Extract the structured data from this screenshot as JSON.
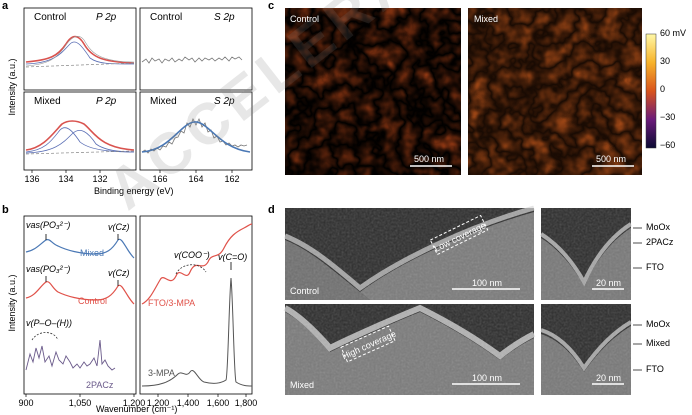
{
  "panels": {
    "a": {
      "label": "a",
      "p_control": {
        "sample": "Control",
        "peak": "P 2p"
      },
      "s_control": {
        "sample": "Control",
        "peak": "S 2p"
      },
      "p_mixed": {
        "sample": "Mixed",
        "peak": "P 2p"
      },
      "s_mixed": {
        "sample": "Mixed",
        "peak": "S 2p"
      },
      "ylabel": "Intensity (a.u.)",
      "xlabel": "Binding energy (eV)",
      "p_ticks": [
        "136",
        "134",
        "132"
      ],
      "s_ticks": [
        "166",
        "164",
        "162"
      ]
    },
    "b": {
      "label": "b",
      "ylabel": "Intensity (a.u.)",
      "xlabel": "Wavenumber (cm⁻¹)",
      "left_ticks": [
        "900",
        "1,050",
        "1,200"
      ],
      "right_ticks": [
        "1,200",
        "1,400",
        "1,600",
        "1,800"
      ],
      "series_left": [
        "Mixed",
        "Control",
        "2PACz"
      ],
      "series_right": [
        "FTO/3-MPA",
        "3-MPA"
      ],
      "annotations": {
        "vas_po3_top": "vas(PO₃²⁻)",
        "vcz_top": "v(Cz)",
        "vas_po3_mid": "vas(PO₃²⁻)",
        "vcz_mid": "v(Cz)",
        "vpoh": "v(P–O–(H))",
        "vcoo": "v(COO⁻)",
        "vco": "v(C=O)"
      }
    },
    "c": {
      "label": "c",
      "left_title": "Control",
      "right_title": "Mixed",
      "scalebar_left": "500 nm",
      "scalebar_right": "500 nm",
      "colorbar_ticks": [
        "60 mV",
        "30",
        "0",
        "−30",
        "−60"
      ]
    },
    "d": {
      "label": "d",
      "top_label": "Control",
      "bottom_label": "Mixed",
      "low_cov": "Low coverage",
      "high_cov": "High coverage",
      "scale_top_big": "100 nm",
      "scale_top_small": "20 nm",
      "scale_bot_big": "100 nm",
      "scale_bot_small": "20 nm",
      "right_top": [
        "MoOx",
        "2PACz",
        "FTO"
      ],
      "right_bot": [
        "MoOx",
        "Mixed",
        "FTO"
      ]
    }
  },
  "watermark": "ACCELERATED ARTICLE PREVIEW",
  "colors": {
    "fit_red": "#d9534f",
    "component_blue": "#5b6fb5",
    "raw_grey": "#777777",
    "mixed_blue": "#4a78b5",
    "control_red": "#e0524a",
    "pacz_purple": "#6a5a8a"
  }
}
